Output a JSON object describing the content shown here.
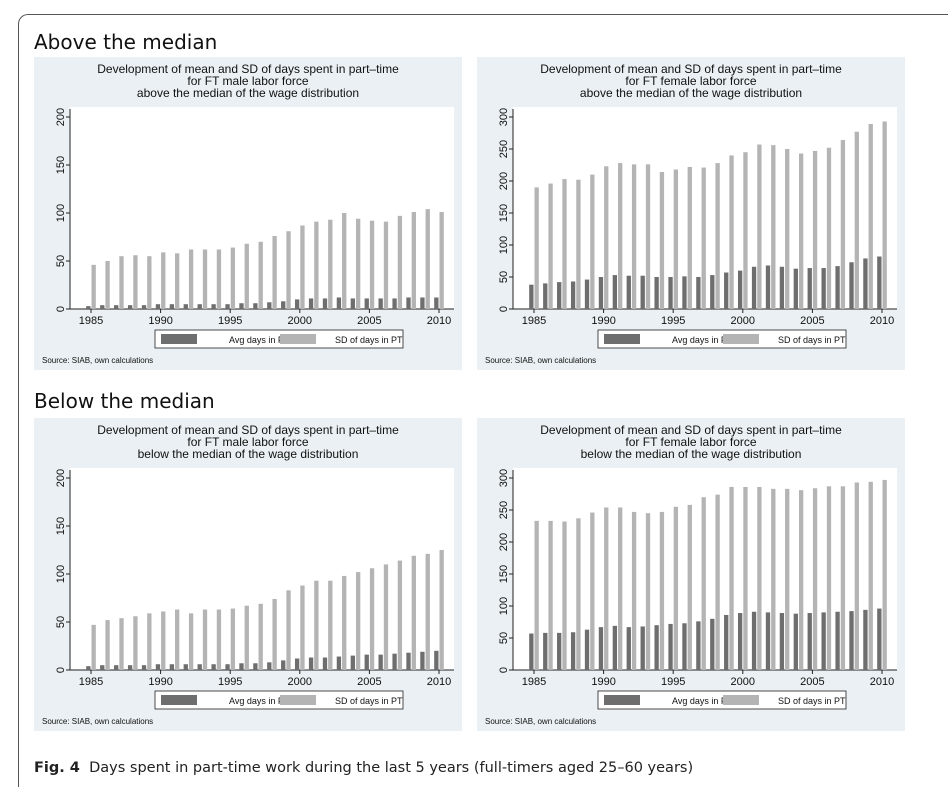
{
  "sections": [
    {
      "title": "Above the median"
    },
    {
      "title": "Below the median"
    }
  ],
  "caption": {
    "label": "Fig. 4",
    "text": "Days spent in part-time work during the last 5 years (full-timers aged 25–60 years)"
  },
  "colors": {
    "panel_bg": "#eaf0f3",
    "plot_bg": "#ffffff",
    "avg_bar": "#6e6e6e",
    "sd_bar": "#b4b4b4"
  },
  "chart_data": [
    {
      "type": "bar",
      "title": [
        "Development of mean and SD of days spent in part–time",
        "for FT male labor force",
        "above the median of the wage distribution"
      ],
      "x": [
        1985,
        1986,
        1987,
        1988,
        1989,
        1990,
        1991,
        1992,
        1993,
        1994,
        1995,
        1996,
        1997,
        1998,
        1999,
        2000,
        2001,
        2002,
        2003,
        2004,
        2005,
        2006,
        2007,
        2008,
        2009,
        2010
      ],
      "xticks": [
        1985,
        1990,
        1995,
        2000,
        2005,
        2010
      ],
      "ylim": [
        0,
        200
      ],
      "yticks": [
        0,
        50,
        100,
        150,
        200
      ],
      "series": [
        {
          "name": "Avg days in PT",
          "values": [
            3,
            4,
            4,
            4,
            4,
            5,
            5,
            5,
            5,
            5,
            5,
            6,
            6,
            7,
            8,
            10,
            11,
            11,
            12,
            11,
            11,
            11,
            11,
            12,
            12,
            12
          ]
        },
        {
          "name": "SD of days in PT",
          "values": [
            46,
            50,
            55,
            56,
            55,
            59,
            58,
            62,
            62,
            62,
            64,
            68,
            70,
            76,
            81,
            87,
            91,
            93,
            100,
            94,
            92,
            91,
            97,
            101,
            104,
            101
          ]
        }
      ],
      "legend_position": "bottom",
      "note": "Source: SIAB, own calculations"
    },
    {
      "type": "bar",
      "title": [
        "Development of mean and SD of days spent in part–time",
        "for FT female labor force",
        "above the median of the wage distribution"
      ],
      "x": [
        1985,
        1986,
        1987,
        1988,
        1989,
        1990,
        1991,
        1992,
        1993,
        1994,
        1995,
        1996,
        1997,
        1998,
        1999,
        2000,
        2001,
        2002,
        2003,
        2004,
        2005,
        2006,
        2007,
        2008,
        2009,
        2010
      ],
      "xticks": [
        1985,
        1990,
        1995,
        2000,
        2005,
        2010
      ],
      "ylim": [
        0,
        300
      ],
      "yticks": [
        0,
        50,
        100,
        150,
        200,
        250,
        300
      ],
      "series": [
        {
          "name": "Avg days in PT",
          "values": [
            38,
            40,
            42,
            43,
            46,
            50,
            53,
            52,
            52,
            50,
            50,
            51,
            50,
            53,
            57,
            60,
            66,
            68,
            66,
            63,
            64,
            64,
            67,
            73,
            79,
            82
          ]
        },
        {
          "name": "SD of days in PT",
          "values": [
            190,
            196,
            203,
            202,
            210,
            223,
            228,
            226,
            226,
            214,
            218,
            222,
            221,
            228,
            240,
            245,
            257,
            256,
            250,
            243,
            247,
            252,
            264,
            277,
            289,
            293
          ]
        }
      ],
      "legend_position": "bottom",
      "note": "Source: SIAB, own calculations"
    },
    {
      "type": "bar",
      "title": [
        "Development of mean and SD of days spent in part–time",
        "for FT male labor force",
        "below the median of the wage distribution"
      ],
      "x": [
        1985,
        1986,
        1987,
        1988,
        1989,
        1990,
        1991,
        1992,
        1993,
        1994,
        1995,
        1996,
        1997,
        1998,
        1999,
        2000,
        2001,
        2002,
        2003,
        2004,
        2005,
        2006,
        2007,
        2008,
        2009,
        2010
      ],
      "xticks": [
        1985,
        1990,
        1995,
        2000,
        2005,
        2010
      ],
      "ylim": [
        0,
        200
      ],
      "yticks": [
        0,
        50,
        100,
        150,
        200
      ],
      "series": [
        {
          "name": "Avg days in PT",
          "values": [
            4,
            5,
            5,
            5,
            5,
            6,
            6,
            6,
            6,
            6,
            6,
            7,
            7,
            8,
            10,
            12,
            13,
            13,
            14,
            15,
            16,
            16,
            17,
            18,
            19,
            20
          ]
        },
        {
          "name": "SD of days in PT",
          "values": [
            47,
            52,
            54,
            56,
            59,
            61,
            63,
            59,
            63,
            63,
            64,
            67,
            69,
            74,
            83,
            88,
            93,
            93,
            98,
            102,
            106,
            110,
            114,
            119,
            121,
            125
          ]
        }
      ],
      "legend_position": "bottom",
      "note": "Source: SIAB, own calculations"
    },
    {
      "type": "bar",
      "title": [
        "Development of mean and SD of days spent in part–time",
        "for FT female labor force",
        "below the median of the wage distribution"
      ],
      "x": [
        1985,
        1986,
        1987,
        1988,
        1989,
        1990,
        1991,
        1992,
        1993,
        1994,
        1995,
        1996,
        1997,
        1998,
        1999,
        2000,
        2001,
        2002,
        2003,
        2004,
        2005,
        2006,
        2007,
        2008,
        2009,
        2010
      ],
      "xticks": [
        1985,
        1990,
        1995,
        2000,
        2005,
        2010
      ],
      "ylim": [
        0,
        300
      ],
      "yticks": [
        0,
        50,
        100,
        150,
        200,
        250,
        300
      ],
      "series": [
        {
          "name": "Avg days in PT",
          "values": [
            57,
            58,
            58,
            59,
            63,
            67,
            69,
            67,
            68,
            70,
            72,
            73,
            76,
            80,
            86,
            89,
            91,
            90,
            89,
            88,
            89,
            90,
            91,
            92,
            94,
            96
          ]
        },
        {
          "name": "SD of days in PT",
          "values": [
            233,
            233,
            232,
            237,
            246,
            254,
            254,
            247,
            245,
            247,
            255,
            258,
            270,
            274,
            286,
            286,
            286,
            283,
            283,
            281,
            284,
            287,
            287,
            293,
            294,
            297
          ]
        }
      ],
      "legend_position": "bottom",
      "note": "Source: SIAB, own calculations"
    }
  ]
}
